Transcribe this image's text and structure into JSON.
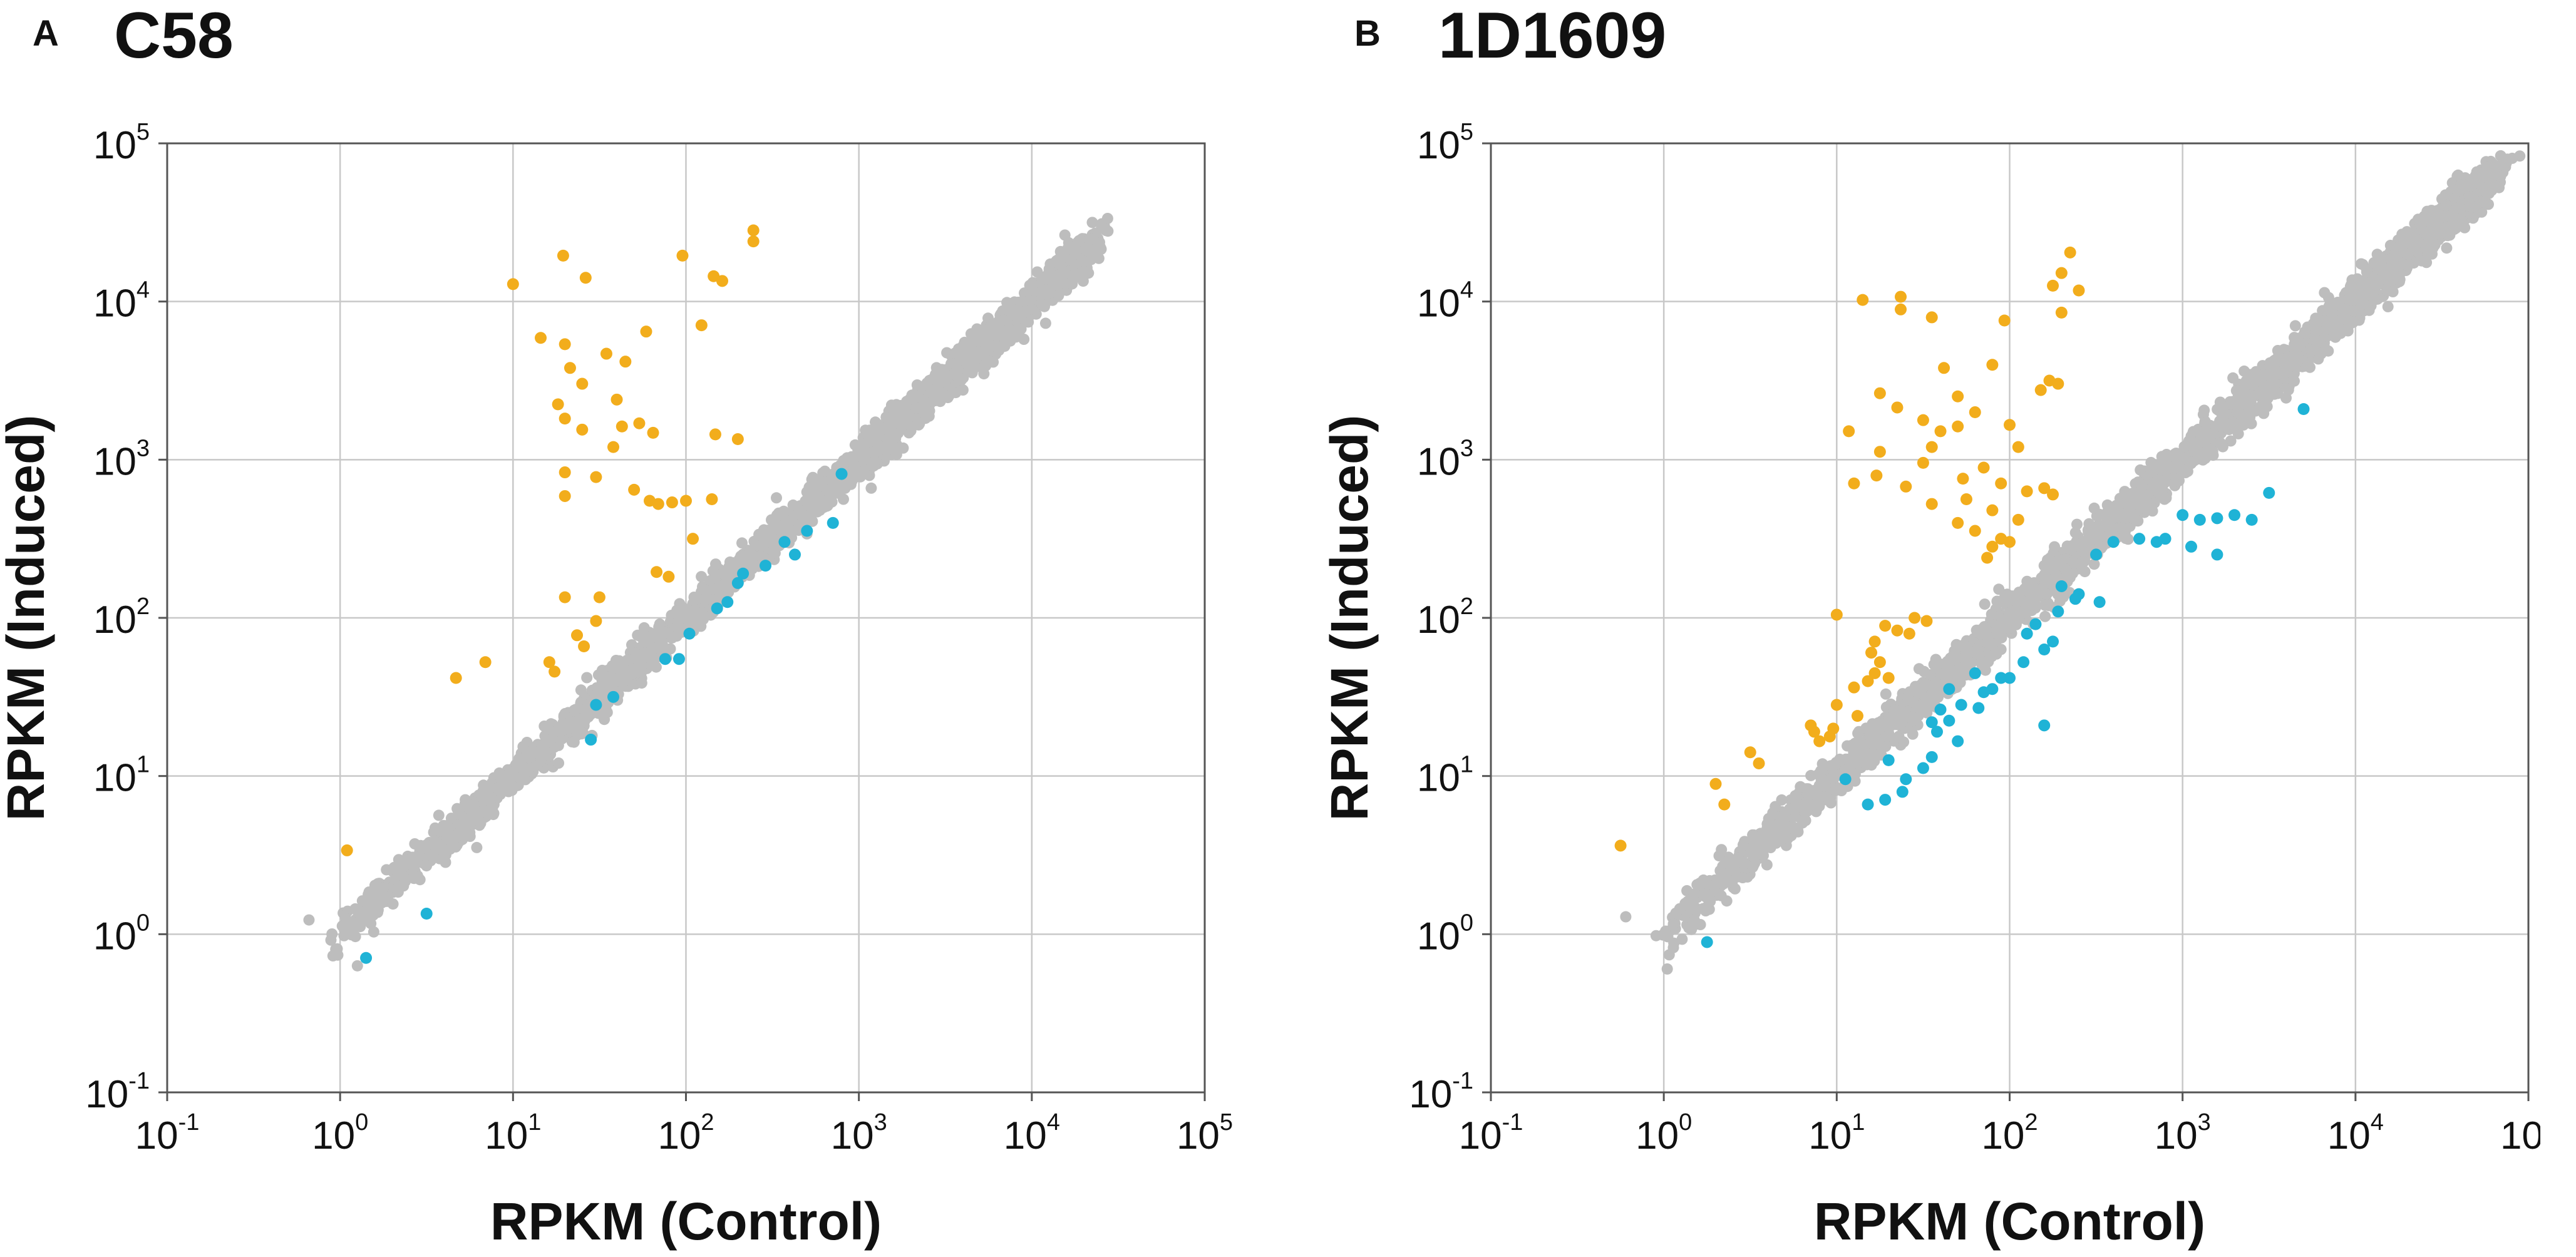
{
  "colors": {
    "baseline": "#bdbdbd",
    "induced": "#f2ad1c",
    "repressed": "#1fb3d6",
    "grid": "#c8c8c8",
    "axis": "#555555",
    "text": "#111111"
  },
  "chart_data": [
    {
      "type": "scatter",
      "panel_label": "A",
      "title": "C58",
      "xlabel": "RPKM (Control)",
      "ylabel": "RPKM (Induced)",
      "scale": "log10",
      "xlim_exp": [
        -1,
        5
      ],
      "ylim_exp": [
        -1,
        5
      ],
      "tick_base": "10",
      "tick_exponents": [
        "-1",
        "0",
        "1",
        "2",
        "3",
        "4",
        "5"
      ],
      "grid": true,
      "baseline_trend": {
        "series": "Baseline (gray)",
        "x_exp_range": [
          -0.2,
          4.5
        ],
        "scatter": 0.06,
        "endpoints": [
          [
            -0.18,
            0.09
          ],
          [
            0.1,
            -0.2
          ],
          [
            4.35,
            4.5
          ],
          [
            4.25,
            4.33
          ]
        ]
      },
      "series": [
        {
          "name": "Induced (orange)",
          "color_key": "induced",
          "points": [
            [
              2.39,
              4.45
            ],
            [
              2.39,
              4.38
            ],
            [
              1.29,
              4.29
            ],
            [
              1.98,
              4.29
            ],
            [
              2.16,
              4.16
            ],
            [
              2.21,
              4.13
            ],
            [
              1.0,
              4.11
            ],
            [
              1.42,
              4.15
            ],
            [
              2.09,
              3.85
            ],
            [
              1.77,
              3.81
            ],
            [
              1.16,
              3.77
            ],
            [
              1.3,
              3.73
            ],
            [
              1.54,
              3.67
            ],
            [
              1.65,
              3.62
            ],
            [
              1.33,
              3.58
            ],
            [
              1.4,
              3.48
            ],
            [
              1.6,
              3.38
            ],
            [
              1.26,
              3.35
            ],
            [
              1.3,
              3.26
            ],
            [
              1.73,
              3.23
            ],
            [
              1.63,
              3.21
            ],
            [
              1.81,
              3.17
            ],
            [
              1.4,
              3.19
            ],
            [
              2.17,
              3.16
            ],
            [
              1.58,
              3.08
            ],
            [
              2.3,
              3.13
            ],
            [
              1.3,
              2.92
            ],
            [
              1.48,
              2.89
            ],
            [
              1.7,
              2.81
            ],
            [
              1.84,
              2.72
            ],
            [
              1.3,
              2.77
            ],
            [
              1.79,
              2.74
            ],
            [
              1.92,
              2.73
            ],
            [
              2.0,
              2.74
            ],
            [
              2.15,
              2.75
            ],
            [
              2.04,
              2.5
            ],
            [
              1.83,
              2.29
            ],
            [
              1.9,
              2.26
            ],
            [
              1.3,
              2.13
            ],
            [
              1.5,
              2.13
            ],
            [
              1.48,
              1.98
            ],
            [
              1.37,
              1.89
            ],
            [
              1.41,
              1.82
            ],
            [
              1.21,
              1.72
            ],
            [
              1.24,
              1.66
            ],
            [
              0.84,
              1.72
            ],
            [
              0.67,
              1.62
            ],
            [
              0.04,
              0.53
            ]
          ]
        },
        {
          "name": "Repressed (blue)",
          "color_key": "repressed",
          "points": [
            [
              2.9,
              2.91
            ],
            [
              2.85,
              2.6
            ],
            [
              2.7,
              2.55
            ],
            [
              2.57,
              2.48
            ],
            [
              2.63,
              2.4
            ],
            [
              2.46,
              2.33
            ],
            [
              2.33,
              2.28
            ],
            [
              2.3,
              2.22
            ],
            [
              2.24,
              2.1
            ],
            [
              2.18,
              2.06
            ],
            [
              2.02,
              1.9
            ],
            [
              1.96,
              1.74
            ],
            [
              1.88,
              1.74
            ],
            [
              1.58,
              1.5
            ],
            [
              1.48,
              1.45
            ],
            [
              1.45,
              1.23
            ],
            [
              0.5,
              0.13
            ],
            [
              0.15,
              -0.15
            ]
          ]
        }
      ]
    },
    {
      "type": "scatter",
      "panel_label": "B",
      "title": "1D1609",
      "xlabel": "RPKM (Control)",
      "ylabel": "RPKM (Induced)",
      "scale": "log10",
      "xlim_exp": [
        -1,
        5
      ],
      "ylim_exp": [
        -1,
        5
      ],
      "tick_base": "10",
      "tick_exponents": [
        "-1",
        "0",
        "1",
        "2",
        "3",
        "4",
        "5"
      ],
      "grid": true,
      "baseline_trend": {
        "series": "Baseline (gray)",
        "x_exp_range": [
          -0.2,
          4.95
        ],
        "scatter": 0.07,
        "endpoints": [
          [
            -0.22,
            0.11
          ],
          [
            0.02,
            -0.22
          ],
          [
            4.95,
            4.92
          ],
          [
            4.83,
            4.72
          ],
          [
            4.52,
            4.43
          ]
        ]
      },
      "series": [
        {
          "name": "Induced (orange)",
          "color_key": "induced",
          "points": [
            [
              2.35,
              4.31
            ],
            [
              2.3,
              4.18
            ],
            [
              2.25,
              4.1
            ],
            [
              2.4,
              4.07
            ],
            [
              2.3,
              3.93
            ],
            [
              1.15,
              4.01
            ],
            [
              1.37,
              4.03
            ],
            [
              1.37,
              3.95
            ],
            [
              1.55,
              3.9
            ],
            [
              1.97,
              3.88
            ],
            [
              1.62,
              3.58
            ],
            [
              2.23,
              3.5
            ],
            [
              2.28,
              3.48
            ],
            [
              2.18,
              3.44
            ],
            [
              1.9,
              3.6
            ],
            [
              1.25,
              3.42
            ],
            [
              1.7,
              3.4
            ],
            [
              1.35,
              3.33
            ],
            [
              1.8,
              3.3
            ],
            [
              1.5,
              3.25
            ],
            [
              1.7,
              3.21
            ],
            [
              1.07,
              3.18
            ],
            [
              1.6,
              3.18
            ],
            [
              2.0,
              3.22
            ],
            [
              1.55,
              3.08
            ],
            [
              2.05,
              3.08
            ],
            [
              1.25,
              3.05
            ],
            [
              1.5,
              2.98
            ],
            [
              1.85,
              2.95
            ],
            [
              1.23,
              2.9
            ],
            [
              1.1,
              2.85
            ],
            [
              1.73,
              2.88
            ],
            [
              1.4,
              2.83
            ],
            [
              1.95,
              2.85
            ],
            [
              2.1,
              2.8
            ],
            [
              2.2,
              2.82
            ],
            [
              2.25,
              2.78
            ],
            [
              1.75,
              2.75
            ],
            [
              1.55,
              2.72
            ],
            [
              1.9,
              2.68
            ],
            [
              2.05,
              2.62
            ],
            [
              1.7,
              2.6
            ],
            [
              1.8,
              2.55
            ],
            [
              1.95,
              2.5
            ],
            [
              2.0,
              2.48
            ],
            [
              1.9,
              2.45
            ],
            [
              1.87,
              2.38
            ],
            [
              1.0,
              2.02
            ],
            [
              1.45,
              2.0
            ],
            [
              1.52,
              1.98
            ],
            [
              1.28,
              1.95
            ],
            [
              1.35,
              1.92
            ],
            [
              1.42,
              1.9
            ],
            [
              1.22,
              1.85
            ],
            [
              1.2,
              1.78
            ],
            [
              1.25,
              1.72
            ],
            [
              1.22,
              1.65
            ],
            [
              1.3,
              1.62
            ],
            [
              1.18,
              1.6
            ],
            [
              1.1,
              1.56
            ],
            [
              1.0,
              1.45
            ],
            [
              1.12,
              1.38
            ],
            [
              0.85,
              1.32
            ],
            [
              0.87,
              1.28
            ],
            [
              0.96,
              1.25
            ],
            [
              0.98,
              1.3
            ],
            [
              0.9,
              1.22
            ],
            [
              0.5,
              1.15
            ],
            [
              0.55,
              1.08
            ],
            [
              0.3,
              0.95
            ],
            [
              0.35,
              0.82
            ],
            [
              -0.25,
              0.56
            ]
          ]
        },
        {
          "name": "Repressed (blue)",
          "color_key": "repressed",
          "points": [
            [
              3.7,
              3.32
            ],
            [
              3.5,
              2.79
            ],
            [
              3.4,
              2.62
            ],
            [
              3.3,
              2.65
            ],
            [
              3.2,
              2.63
            ],
            [
              3.1,
              2.62
            ],
            [
              3.0,
              2.65
            ],
            [
              2.9,
              2.5
            ],
            [
              3.05,
              2.45
            ],
            [
              3.2,
              2.4
            ],
            [
              2.85,
              2.48
            ],
            [
              2.75,
              2.5
            ],
            [
              2.6,
              2.48
            ],
            [
              2.5,
              2.4
            ],
            [
              2.3,
              2.2
            ],
            [
              2.4,
              2.15
            ],
            [
              2.52,
              2.1
            ],
            [
              2.38,
              2.12
            ],
            [
              2.28,
              2.04
            ],
            [
              2.15,
              1.96
            ],
            [
              2.1,
              1.9
            ],
            [
              2.25,
              1.85
            ],
            [
              2.2,
              1.8
            ],
            [
              2.08,
              1.72
            ],
            [
              2.0,
              1.62
            ],
            [
              1.95,
              1.62
            ],
            [
              1.9,
              1.55
            ],
            [
              1.8,
              1.65
            ],
            [
              1.85,
              1.53
            ],
            [
              1.82,
              1.43
            ],
            [
              1.72,
              1.45
            ],
            [
              1.65,
              1.55
            ],
            [
              1.6,
              1.42
            ],
            [
              1.65,
              1.35
            ],
            [
              1.55,
              1.34
            ],
            [
              1.58,
              1.28
            ],
            [
              1.7,
              1.22
            ],
            [
              1.55,
              1.12
            ],
            [
              1.5,
              1.05
            ],
            [
              1.4,
              0.98
            ],
            [
              1.3,
              1.1
            ],
            [
              1.28,
              0.85
            ],
            [
              1.18,
              0.82
            ],
            [
              1.05,
              0.98
            ],
            [
              1.38,
              0.9
            ],
            [
              2.2,
              1.32
            ],
            [
              0.25,
              -0.05
            ]
          ]
        }
      ]
    }
  ]
}
